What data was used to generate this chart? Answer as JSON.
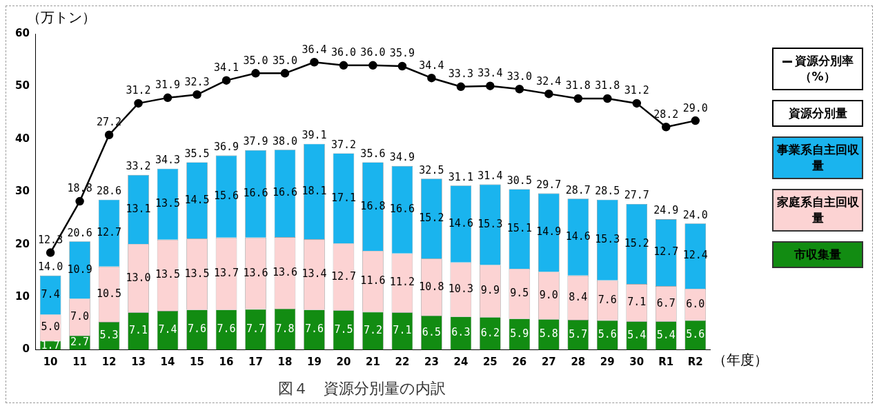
{
  "chart_data": {
    "type": "bar",
    "title": "図４　資源分別量の内訳",
    "ylabel": "（万トン）",
    "xlabel": "（年度）",
    "stacked": true,
    "legend": "right",
    "grid": false,
    "categories": [
      "10",
      "11",
      "12",
      "13",
      "14",
      "15",
      "16",
      "17",
      "18",
      "19",
      "20",
      "21",
      "22",
      "23",
      "24",
      "25",
      "26",
      "27",
      "28",
      "29",
      "30",
      "R1",
      "R2"
    ],
    "ylim": [
      0,
      60
    ],
    "yticks": [
      0,
      10,
      20,
      30,
      40,
      50,
      60
    ],
    "y2lim": [
      0,
      40
    ],
    "series": [
      {
        "name": "市収集量",
        "color": "#128c12",
        "values": [
          1.7,
          2.7,
          5.3,
          7.1,
          7.4,
          7.6,
          7.6,
          7.7,
          7.8,
          7.6,
          7.5,
          7.2,
          7.1,
          6.5,
          6.3,
          6.2,
          5.9,
          5.8,
          5.7,
          5.6,
          5.4,
          5.4,
          5.6
        ],
        "value_labels": [
          "1.7",
          "2.7",
          "5.3",
          "7.1",
          "7.4",
          "7.6",
          "7.6",
          "7.7",
          "7.8",
          "7.6",
          "7.5",
          "7.2",
          "7.1",
          "6.5",
          "6.3",
          "6.2",
          "5.9",
          "5.8",
          "5.7",
          "5.6",
          "5.4",
          "5.4",
          "5.6"
        ]
      },
      {
        "name": "家庭系自主回収量",
        "color": "#fcd3d3",
        "values": [
          5.0,
          7.0,
          10.5,
          13.0,
          13.5,
          13.5,
          13.7,
          13.6,
          13.6,
          13.4,
          12.7,
          11.6,
          11.2,
          10.8,
          10.3,
          9.9,
          9.5,
          9.0,
          8.4,
          7.6,
          7.1,
          6.7,
          6.0
        ],
        "value_labels": [
          "5.0",
          "7.0",
          "10.5",
          "13.0",
          "13.5",
          "13.5",
          "13.7",
          "13.6",
          "13.6",
          "13.4",
          "12.7",
          "11.6",
          "11.2",
          "10.8",
          "10.3",
          "9.9",
          "9.5",
          "9.0",
          "8.4",
          "7.6",
          "7.1",
          "6.7",
          "6.0"
        ]
      },
      {
        "name": "事業系自主回収量",
        "color": "#1ab4ee",
        "values": [
          7.4,
          10.9,
          12.7,
          13.1,
          13.5,
          14.5,
          15.6,
          16.6,
          16.6,
          18.1,
          17.1,
          16.8,
          16.6,
          15.2,
          14.6,
          15.3,
          15.1,
          14.9,
          14.6,
          15.3,
          15.2,
          12.7,
          12.4
        ],
        "value_labels": [
          "7.4",
          "10.9",
          "12.7",
          "13.1",
          "13.5",
          "14.5",
          "15.6",
          "16.6",
          "16.6",
          "18.1",
          "17.1",
          "16.8",
          "16.6",
          "15.2",
          "14.6",
          "15.3",
          "15.1",
          "14.9",
          "14.6",
          "15.3",
          "15.2",
          "12.7",
          "12.4"
        ]
      },
      {
        "name": "資源分別率（%）",
        "type": "line",
        "axis": "y2",
        "color": "#000000",
        "marker": "circle",
        "line_style": "solid",
        "values": [
          12.3,
          18.8,
          27.2,
          31.2,
          31.9,
          32.3,
          34.1,
          35.0,
          35.0,
          36.4,
          36.0,
          36.0,
          35.9,
          34.4,
          33.3,
          33.4,
          33.0,
          32.4,
          31.8,
          31.8,
          31.2,
          28.2,
          29.0
        ],
        "value_labels": [
          "12.3",
          "18.8",
          "27.2",
          "31.2",
          "31.9",
          "32.3",
          "34.1",
          "35.0",
          "35.0",
          "36.4",
          "36.0",
          "36.0",
          "35.9",
          "34.4",
          "33.3",
          "33.4",
          "33.0",
          "32.4",
          "31.8",
          "31.8",
          "31.2",
          "28.2",
          "29.0"
        ]
      }
    ],
    "totals": [
      "14.0",
      "20.6",
      "28.6",
      "33.2",
      "34.3",
      "35.5",
      "36.9",
      "37.9",
      "38.0",
      "39.1",
      "37.2",
      "35.6",
      "34.9",
      "32.5",
      "31.1",
      "31.4",
      "30.5",
      "29.7",
      "28.7",
      "28.5",
      "27.7",
      "24.9",
      "24.0"
    ],
    "annotations": [
      "資源分別量"
    ]
  }
}
